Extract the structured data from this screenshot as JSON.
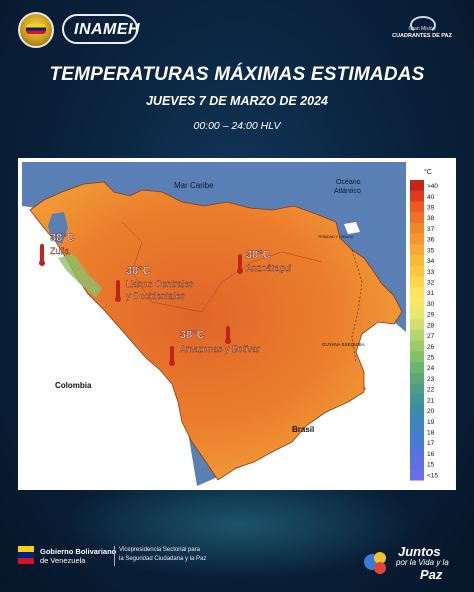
{
  "header": {
    "logo_text": "INAMEH",
    "partner_line1": "Gran Misión",
    "partner_line2": "CUADRANTES DE PAZ"
  },
  "title": "TEMPERATURAS MÁXIMAS ESTIMADAS",
  "subtitle": "JUEVES 7 DE MARZO DE 2024",
  "time_range": "00:00 – 24:00 HLV",
  "map": {
    "sea_labels": {
      "caribbean": "Mar Caribe",
      "atlantic_1": "Océano",
      "atlantic_2": "Atlántico"
    },
    "country_labels": {
      "colombia": "Colombia",
      "brasil": "Brasil"
    },
    "territory_labels": {
      "trinidad": "TRINIDAD Y TOBAGO",
      "guyana": "GUYANA ESEQUIBA"
    },
    "regions": [
      {
        "temp": "38°C",
        "name": "Zulia"
      },
      {
        "temp": "38°C",
        "name_line1": "Llanos Centrales",
        "name_line2": "y Occidentales"
      },
      {
        "temp": "38°C",
        "name": "Anzoátegui"
      },
      {
        "temp": "38°C",
        "name": "Amazonas y Bolívar"
      }
    ],
    "colors": {
      "sea": "#5a7fb4",
      "neighbor_land": "#ffffff",
      "hot": "#e0662a",
      "warm": "#f3a63a"
    }
  },
  "legend": {
    "unit": "°C",
    "labels": [
      ">40",
      "40",
      "39",
      "38",
      "37",
      "36",
      "35",
      "34",
      "33",
      "32",
      "31",
      "30",
      "29",
      "28",
      "27",
      "26",
      "25",
      "24",
      "23",
      "22",
      "21",
      "20",
      "19",
      "18",
      "17",
      "16",
      "15",
      "<15"
    ],
    "colors": [
      "#c7251c",
      "#e03a1e",
      "#eb5a22",
      "#f07126",
      "#f3842a",
      "#f5962e",
      "#f8a833",
      "#fab83a",
      "#fbc740",
      "#fcd54a",
      "#fde25a",
      "#f5e866",
      "#e4e86c",
      "#cfe06e",
      "#b6d56c",
      "#9ccb6a",
      "#83c06c",
      "#6eb470",
      "#5ea878",
      "#4f9d86",
      "#439496",
      "#3c8ca8",
      "#3d86b8",
      "#4180c6",
      "#497ad2",
      "#5374dc",
      "#5e70e4",
      "#6a6ee8"
    ]
  },
  "footer": {
    "gov_line1": "Gobierno Bolivariano",
    "gov_line2": "de Venezuela",
    "vice_line1": "Vicepresidencia Sectorial para",
    "vice_line2": "la Seguridad Ciudadana y la Paz",
    "slogan_1": "Juntos",
    "slogan_2": "por la Vida y la",
    "slogan_3": "Paz"
  }
}
